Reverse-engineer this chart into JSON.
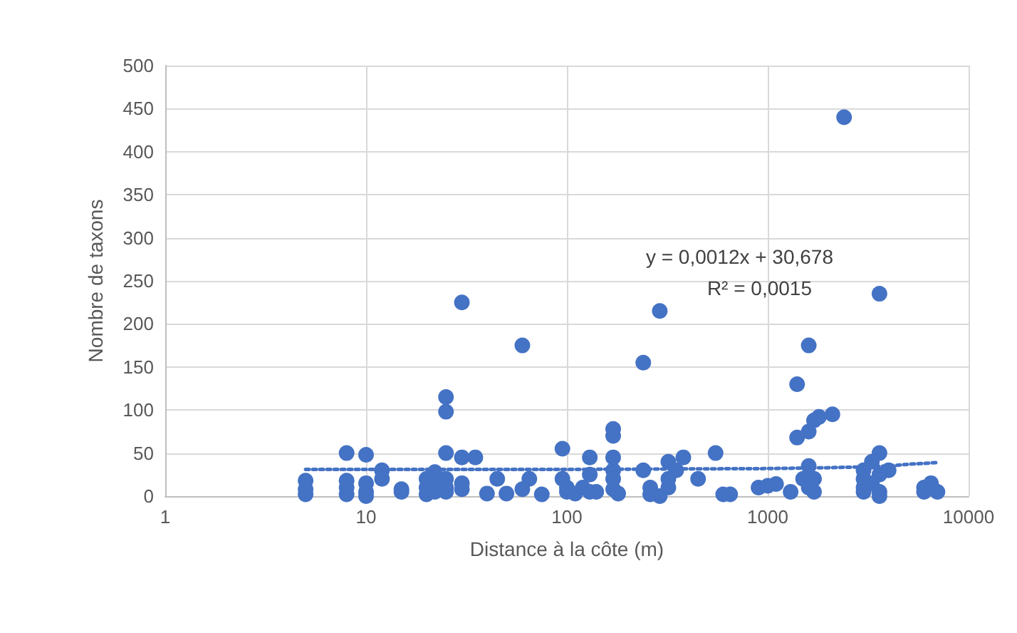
{
  "chart_data": {
    "type": "scatter",
    "xlabel": "Distance à la côte (m)",
    "ylabel": "Nombre de taxons",
    "log": "x",
    "xlim": [
      1,
      10000
    ],
    "xticks": [
      1,
      10,
      100,
      1000,
      10000
    ],
    "ylim": [
      0,
      500
    ],
    "yticks": [
      0,
      50,
      100,
      150,
      200,
      250,
      300,
      350,
      400,
      450,
      500
    ],
    "grid": true,
    "marker": "circle",
    "annotations": [
      "y = 0,0012x + 30,678",
      "R² = 0,0015"
    ],
    "series": [
      {
        "color": "#4472c4",
        "x": [
          5,
          5,
          5,
          8,
          8,
          8,
          8,
          10,
          10,
          10,
          10,
          12,
          12,
          15,
          15,
          20,
          20,
          20,
          22,
          22,
          22,
          25,
          25,
          25,
          25,
          25,
          25,
          30,
          30,
          30,
          30,
          35,
          40,
          45,
          50,
          60,
          60,
          65,
          75,
          95,
          95,
          100,
          100,
          110,
          120,
          130,
          130,
          130,
          140,
          170,
          170,
          170,
          170,
          170,
          170,
          180,
          240,
          240,
          260,
          260,
          290,
          290,
          320,
          320,
          320,
          350,
          380,
          450,
          550,
          600,
          650,
          900,
          1000,
          1100,
          1300,
          1400,
          1400,
          1500,
          1600,
          1600,
          1600,
          1600,
          1700,
          1700,
          1700,
          1800,
          2100,
          2400,
          3000,
          3000,
          3000,
          3000,
          3300,
          3300,
          3600,
          3600,
          3600,
          3600,
          3600,
          4000,
          6000,
          6000,
          6500,
          7000
        ],
        "values": [
          2,
          8,
          18,
          50,
          10,
          18,
          2,
          48,
          5,
          15,
          0,
          30,
          20,
          5,
          8,
          10,
          20,
          2,
          28,
          5,
          15,
          115,
          98,
          50,
          20,
          10,
          5,
          225,
          45,
          15,
          8,
          45,
          3,
          20,
          3,
          175,
          8,
          20,
          2,
          55,
          20,
          5,
          10,
          3,
          10,
          45,
          25,
          5,
          5,
          78,
          70,
          45,
          30,
          20,
          8,
          3,
          155,
          30,
          2,
          10,
          215,
          0,
          40,
          10,
          20,
          30,
          45,
          20,
          50,
          2,
          2,
          10,
          12,
          14,
          5,
          130,
          68,
          20,
          175,
          75,
          35,
          10,
          88,
          20,
          5,
          92,
          95,
          440,
          20,
          10,
          5,
          30,
          40,
          15,
          235,
          50,
          25,
          5,
          0,
          30,
          10,
          5,
          15,
          5
        ]
      },
      {
        "type": "line",
        "line_style": "dotted",
        "marker": "none",
        "color": "#4472c4",
        "x": [
          5,
          100,
          1000,
          2000,
          3000,
          4000,
          5000,
          6000,
          7000
        ],
        "values": [
          31,
          31,
          32,
          33,
          34,
          35,
          37,
          38,
          39
        ]
      }
    ]
  }
}
